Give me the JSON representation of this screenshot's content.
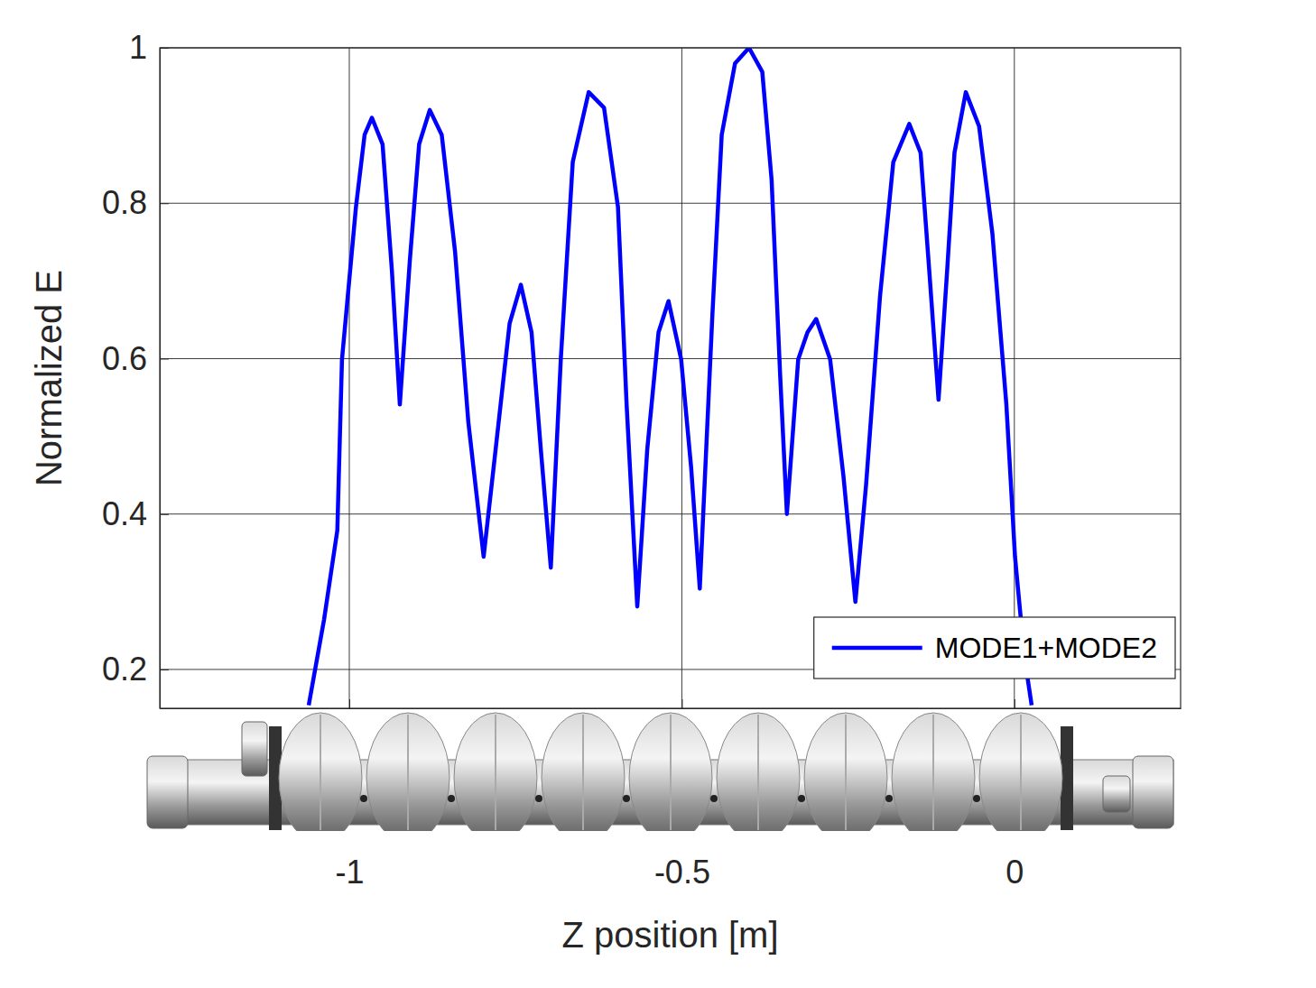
{
  "chart_data": {
    "type": "line",
    "x_label": "Z position [m]",
    "y_label": "Normalized E",
    "xlim": [
      -1.285,
      0.25
    ],
    "ylim": [
      0.15,
      1
    ],
    "xticks": [
      -1,
      -0.5,
      0
    ],
    "yticks": [
      0.2,
      0.4,
      0.6,
      0.8,
      1
    ],
    "grid": true,
    "legend": "lower right",
    "series": [
      {
        "name": "MODE1+MODE2",
        "color": "#0000ff",
        "x": [
          -1.061,
          -1.038,
          -1.018,
          -1.011,
          -0.99,
          -0.977,
          -0.966,
          -0.95,
          -0.936,
          -0.924,
          -0.909,
          -0.895,
          -0.879,
          -0.861,
          -0.841,
          -0.821,
          -0.798,
          -0.78,
          -0.759,
          -0.742,
          -0.726,
          -0.712,
          -0.697,
          -0.682,
          -0.664,
          -0.64,
          -0.617,
          -0.596,
          -0.583,
          -0.567,
          -0.552,
          -0.535,
          -0.52,
          -0.501,
          -0.486,
          -0.473,
          -0.454,
          -0.44,
          -0.42,
          -0.399,
          -0.379,
          -0.365,
          -0.352,
          -0.342,
          -0.325,
          -0.311,
          -0.298,
          -0.277,
          -0.257,
          -0.239,
          -0.223,
          -0.202,
          -0.182,
          -0.158,
          -0.141,
          -0.128,
          -0.114,
          -0.101,
          -0.09,
          -0.073,
          -0.053,
          -0.033,
          -0.012,
          0.001,
          0.015,
          0.026
        ],
        "values": [
          0.154,
          0.264,
          0.379,
          0.599,
          0.795,
          0.888,
          0.91,
          0.876,
          0.714,
          0.541,
          0.726,
          0.876,
          0.92,
          0.888,
          0.738,
          0.518,
          0.345,
          0.483,
          0.645,
          0.695,
          0.634,
          0.483,
          0.331,
          0.599,
          0.853,
          0.943,
          0.923,
          0.795,
          0.541,
          0.281,
          0.483,
          0.634,
          0.674,
          0.599,
          0.46,
          0.304,
          0.657,
          0.888,
          0.98,
          1.0,
          0.969,
          0.83,
          0.576,
          0.4,
          0.599,
          0.634,
          0.651,
          0.599,
          0.449,
          0.287,
          0.437,
          0.68,
          0.853,
          0.902,
          0.865,
          0.714,
          0.547,
          0.714,
          0.865,
          0.943,
          0.899,
          0.761,
          0.541,
          0.345,
          0.217,
          0.154
        ]
      }
    ]
  }
}
